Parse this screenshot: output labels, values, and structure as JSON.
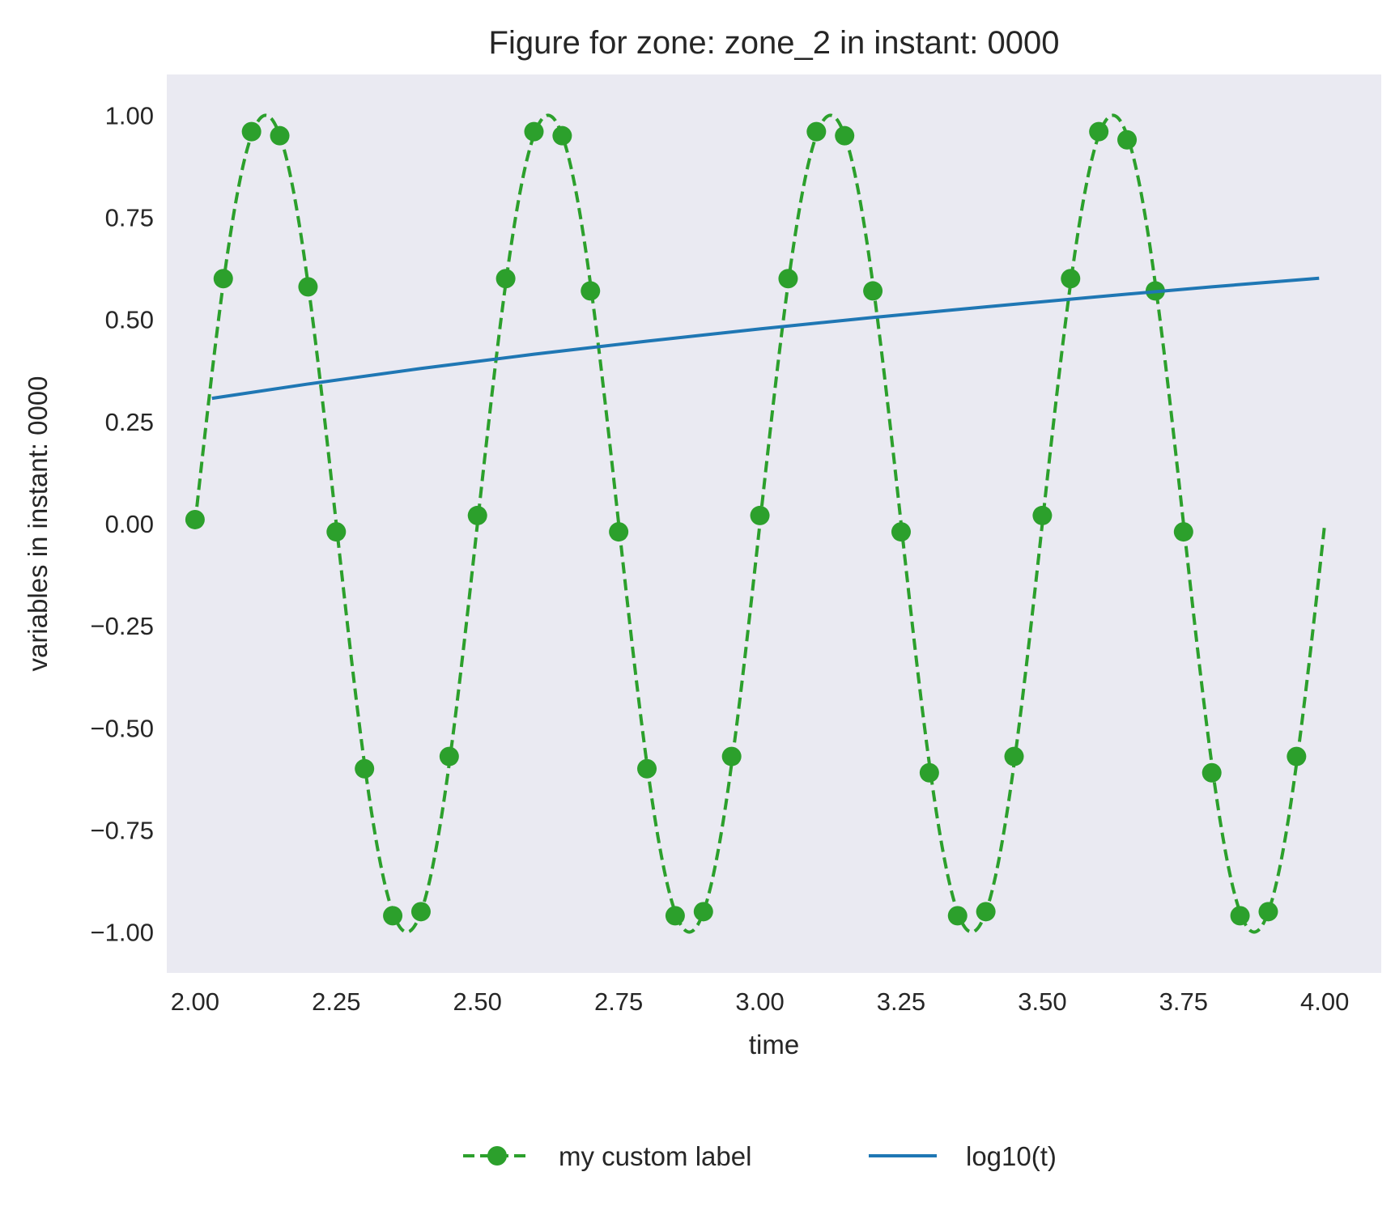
{
  "chart_data": {
    "type": "line",
    "title": "Figure for zone: zone_2 in instant: 0000",
    "xlabel": "time",
    "ylabel": "variables in instant: 0000",
    "xlim": [
      1.95,
      4.1
    ],
    "ylim": [
      -1.1,
      1.1
    ],
    "xticks": [
      2.0,
      2.25,
      2.5,
      2.75,
      3.0,
      3.25,
      3.5,
      3.75,
      4.0
    ],
    "xtick_labels": [
      "2.00",
      "2.25",
      "2.50",
      "2.75",
      "3.00",
      "3.25",
      "3.50",
      "3.75",
      "4.00"
    ],
    "yticks": [
      1.0,
      0.75,
      0.5,
      0.25,
      0.0,
      -0.25,
      -0.5,
      -0.75,
      -1.0
    ],
    "ytick_labels": [
      "1.00",
      "0.75",
      "0.50",
      "0.25",
      "0.00",
      "−0.25",
      "−0.50",
      "−0.75",
      "−1.00"
    ],
    "grid": false,
    "legend_placement": "bottom-center",
    "series": [
      {
        "name": "my custom label",
        "style": "dashed-line-with-markers",
        "color": "#2ca02c",
        "curve": {
          "function": "sin",
          "period": 0.5,
          "phase_x": 2.0,
          "amplitude": 1.0,
          "x_range": [
            2.0,
            4.0
          ]
        },
        "marker_x": [
          2.0,
          2.05,
          2.1,
          2.15,
          2.2,
          2.25,
          2.3,
          2.35,
          2.4,
          2.45,
          2.5,
          2.55,
          2.6,
          2.65,
          2.7,
          2.75,
          2.8,
          2.85,
          2.9,
          2.95,
          3.0,
          3.05,
          3.1,
          3.15,
          3.2,
          3.25,
          3.3,
          3.35,
          3.4,
          3.45,
          3.5,
          3.55,
          3.6,
          3.65,
          3.7,
          3.75,
          3.8,
          3.85,
          3.9,
          3.95
        ],
        "marker_y": [
          0.01,
          0.6,
          0.96,
          0.95,
          0.58,
          -0.02,
          -0.6,
          -0.96,
          -0.95,
          -0.57,
          0.02,
          0.6,
          0.96,
          0.95,
          0.57,
          -0.02,
          -0.6,
          -0.96,
          -0.95,
          -0.57,
          0.02,
          0.6,
          0.96,
          0.95,
          0.57,
          -0.02,
          -0.61,
          -0.96,
          -0.95,
          -0.57,
          0.02,
          0.6,
          0.96,
          0.94,
          0.57,
          -0.02,
          -0.61,
          -0.96,
          -0.95,
          -0.57
        ]
      },
      {
        "name": "log10(t)",
        "style": "solid-line",
        "color": "#1f77b4",
        "x": [
          2.03,
          2.2,
          2.4,
          2.6,
          2.8,
          3.0,
          3.2,
          3.4,
          3.6,
          3.8,
          3.99
        ],
        "y": [
          0.307,
          0.342,
          0.38,
          0.415,
          0.447,
          0.477,
          0.505,
          0.531,
          0.556,
          0.58,
          0.601
        ]
      }
    ]
  }
}
